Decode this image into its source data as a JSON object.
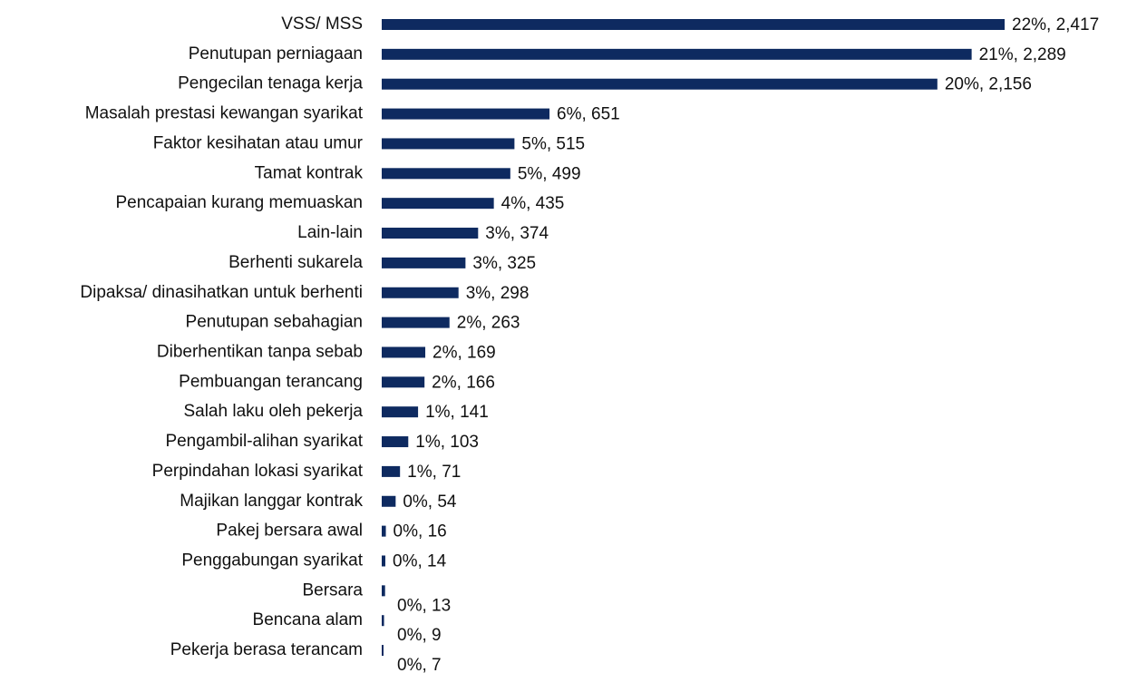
{
  "chart_data": {
    "type": "bar",
    "orientation": "horizontal",
    "color": "#0e2a60",
    "categories": [
      "VSS/ MSS",
      "Penutupan perniagaan",
      "Pengecilan tenaga kerja",
      "Masalah prestasi kewangan syarikat",
      "Faktor kesihatan atau umur",
      "Tamat kontrak",
      "Pencapaian kurang memuaskan",
      "Lain-lain",
      "Berhenti sukarela",
      "Dipaksa/ dinasihatkan untuk berhenti",
      "Penutupan sebahagian",
      "Diberhentikan tanpa sebab",
      "Pembuangan terancang",
      "Salah laku oleh pekerja",
      "Pengambil-alihan syarikat",
      "Perpindahan lokasi syarikat",
      "Majikan langgar kontrak",
      "Pakej bersara awal",
      "Penggabungan syarikat",
      "Bersara",
      "Bencana alam",
      "Pekerja berasa terancam"
    ],
    "values": [
      2417,
      2289,
      2156,
      651,
      515,
      499,
      435,
      374,
      325,
      298,
      263,
      169,
      166,
      141,
      103,
      71,
      54,
      16,
      14,
      13,
      9,
      7
    ],
    "value_labels": [
      "22%, 2,417",
      "21%, 2,289",
      "20%, 2,156",
      "6%, 651",
      "5%, 515",
      "5%, 499",
      "4%, 435",
      "3%, 374",
      "3%, 325",
      "3%, 298",
      "2%, 263",
      "2%, 169",
      "2%, 166",
      "1%, 141",
      "1%, 103",
      "1%, 71",
      "0%, 54",
      "0%, 16",
      "0%, 14",
      "0%, 13",
      "0%, 9",
      "0%, 7"
    ]
  }
}
